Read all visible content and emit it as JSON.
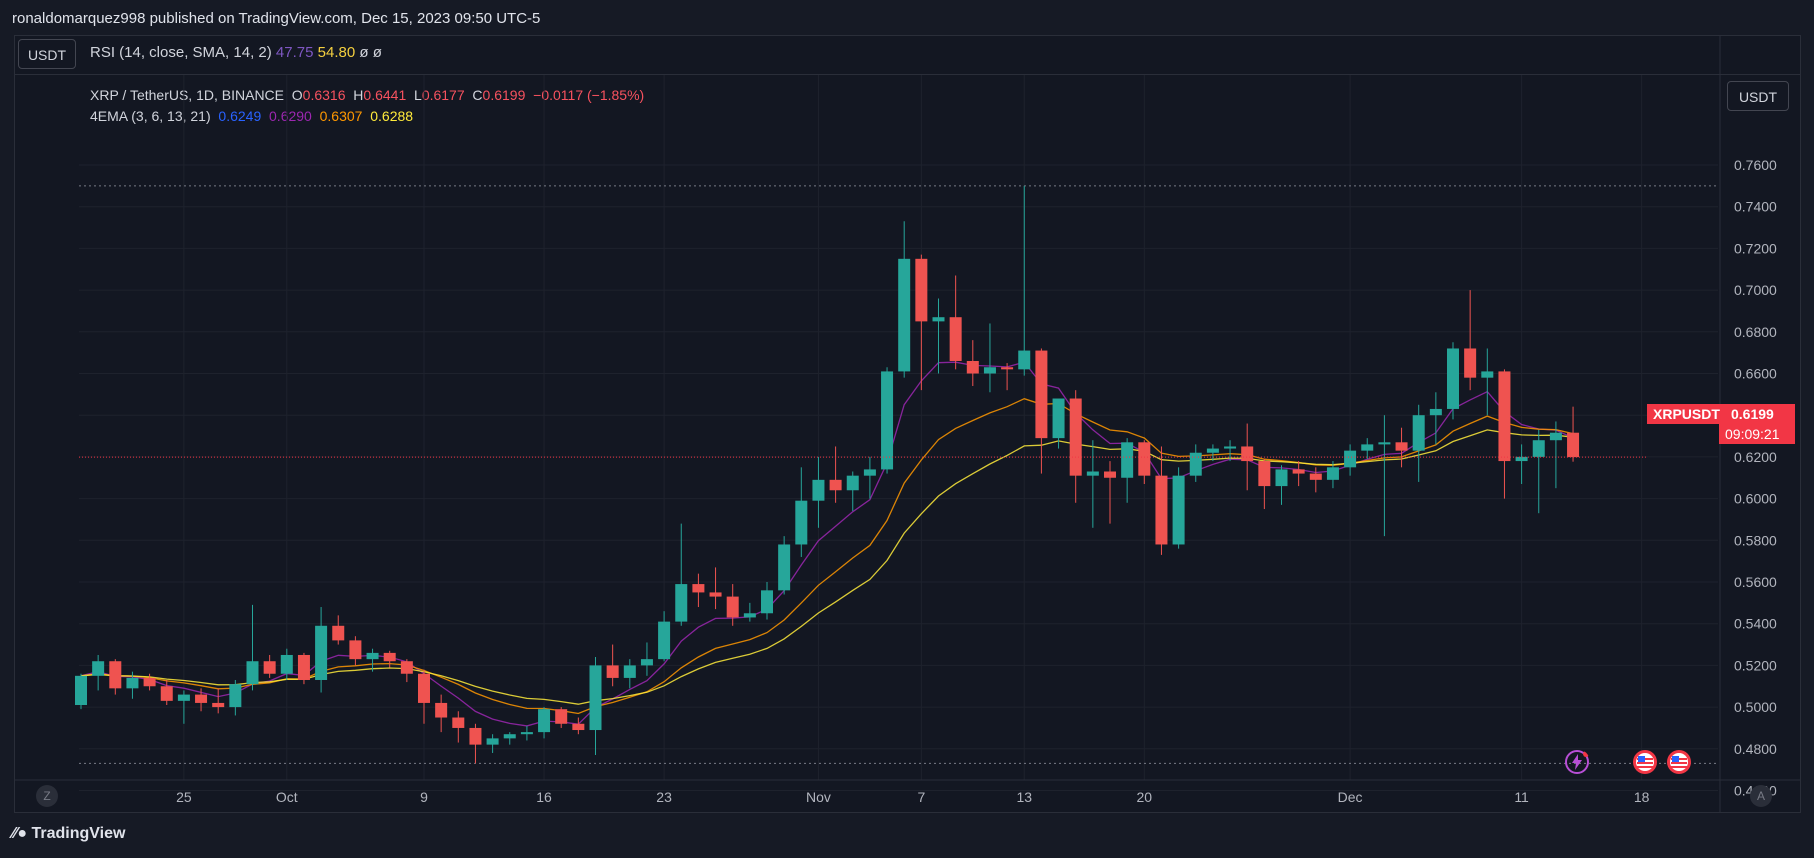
{
  "header": {
    "published_text": "ronaldomarquez998 published on TradingView.com, Dec 15, 2023 09:50 UTC-5"
  },
  "toolbar": {
    "currency_left": "USDT",
    "currency_right": "USDT",
    "rsi_label": "RSI (14, close, SMA, 14, 2)",
    "rsi_value": "47.75",
    "rsi_ma_value": "54.80",
    "rsi_extra1": "ø",
    "rsi_extra2": "ø"
  },
  "legend": {
    "symbol": "XRP / TetherUS, 1D, BINANCE",
    "o_label": "O",
    "o": "0.6316",
    "h_label": "H",
    "h": "0.6441",
    "l_label": "L",
    "l": "0.6177",
    "c_label": "C",
    "c": "0.6199",
    "change": "−0.0117 (−1.85%)",
    "ema_label": "4EMA (3, 6, 13, 21)",
    "ema1": "0.6249",
    "ema2": "0.6290",
    "ema3": "0.6307",
    "ema4": "0.6288"
  },
  "price_tag": {
    "symbol": "XRPUSDT",
    "price": "0.6199",
    "countdown": "09:09:21"
  },
  "footer": {
    "logo": "TradingView"
  },
  "axis_buttons": {
    "left": "Z",
    "right": "A"
  },
  "colors": {
    "up": "#26a69a",
    "down": "#ef5350",
    "bg": "#131722",
    "grid": "#1e222d",
    "ema1": "#2962ff",
    "ema2": "#9c27b0",
    "ema3": "#ff9800",
    "ema4": "#ffeb3b"
  },
  "icons": [
    "lightning-icon",
    "us-flag-icon",
    "us-flag-icon"
  ],
  "chart_data": {
    "type": "candlestick",
    "title": "XRP / TetherUS, 1D, BINANCE",
    "ylim": [
      0.45,
      0.77
    ],
    "y_ticks": [
      "0.7600",
      "0.7400",
      "0.7200",
      "0.7000",
      "0.6800",
      "0.6600",
      "0.6400",
      "0.6200",
      "0.6000",
      "0.5800",
      "0.5600",
      "0.5400",
      "0.5200",
      "0.5000",
      "0.4800",
      "0.4600"
    ],
    "x_ticks": [
      {
        "label": "25",
        "day": 6
      },
      {
        "label": "Oct",
        "day": 12
      },
      {
        "label": "9",
        "day": 20
      },
      {
        "label": "16",
        "day": 27
      },
      {
        "label": "23",
        "day": 34
      },
      {
        "label": "Nov",
        "day": 43
      },
      {
        "label": "7",
        "day": 49
      },
      {
        "label": "13",
        "day": 55
      },
      {
        "label": "20",
        "day": 62
      },
      {
        "label": "Dec",
        "day": 74
      },
      {
        "label": "11",
        "day": 84
      },
      {
        "label": "18",
        "day": 91
      }
    ],
    "candles": [
      {
        "o": 0.501,
        "h": 0.516,
        "l": 0.499,
        "c": 0.515
      },
      {
        "o": 0.515,
        "h": 0.525,
        "l": 0.508,
        "c": 0.522
      },
      {
        "o": 0.522,
        "h": 0.523,
        "l": 0.506,
        "c": 0.509
      },
      {
        "o": 0.509,
        "h": 0.517,
        "l": 0.504,
        "c": 0.514
      },
      {
        "o": 0.514,
        "h": 0.516,
        "l": 0.508,
        "c": 0.51
      },
      {
        "o": 0.51,
        "h": 0.513,
        "l": 0.501,
        "c": 0.503
      },
      {
        "o": 0.503,
        "h": 0.508,
        "l": 0.492,
        "c": 0.506
      },
      {
        "o": 0.506,
        "h": 0.509,
        "l": 0.498,
        "c": 0.502
      },
      {
        "o": 0.502,
        "h": 0.509,
        "l": 0.497,
        "c": 0.5
      },
      {
        "o": 0.5,
        "h": 0.513,
        "l": 0.496,
        "c": 0.511
      },
      {
        "o": 0.511,
        "h": 0.549,
        "l": 0.508,
        "c": 0.522
      },
      {
        "o": 0.522,
        "h": 0.525,
        "l": 0.514,
        "c": 0.516
      },
      {
        "o": 0.516,
        "h": 0.528,
        "l": 0.513,
        "c": 0.525
      },
      {
        "o": 0.525,
        "h": 0.526,
        "l": 0.511,
        "c": 0.513
      },
      {
        "o": 0.513,
        "h": 0.548,
        "l": 0.507,
        "c": 0.539
      },
      {
        "o": 0.539,
        "h": 0.544,
        "l": 0.53,
        "c": 0.532
      },
      {
        "o": 0.532,
        "h": 0.534,
        "l": 0.52,
        "c": 0.523
      },
      {
        "o": 0.523,
        "h": 0.528,
        "l": 0.517,
        "c": 0.526
      },
      {
        "o": 0.526,
        "h": 0.527,
        "l": 0.519,
        "c": 0.522
      },
      {
        "o": 0.522,
        "h": 0.523,
        "l": 0.512,
        "c": 0.516
      },
      {
        "o": 0.516,
        "h": 0.518,
        "l": 0.492,
        "c": 0.502
      },
      {
        "o": 0.502,
        "h": 0.506,
        "l": 0.488,
        "c": 0.495
      },
      {
        "o": 0.495,
        "h": 0.498,
        "l": 0.483,
        "c": 0.49
      },
      {
        "o": 0.49,
        "h": 0.492,
        "l": 0.473,
        "c": 0.482
      },
      {
        "o": 0.482,
        "h": 0.487,
        "l": 0.478,
        "c": 0.485
      },
      {
        "o": 0.485,
        "h": 0.488,
        "l": 0.482,
        "c": 0.487
      },
      {
        "o": 0.487,
        "h": 0.491,
        "l": 0.484,
        "c": 0.488
      },
      {
        "o": 0.488,
        "h": 0.5,
        "l": 0.485,
        "c": 0.499
      },
      {
        "o": 0.499,
        "h": 0.5,
        "l": 0.49,
        "c": 0.492
      },
      {
        "o": 0.492,
        "h": 0.495,
        "l": 0.487,
        "c": 0.489
      },
      {
        "o": 0.489,
        "h": 0.524,
        "l": 0.477,
        "c": 0.52
      },
      {
        "o": 0.52,
        "h": 0.53,
        "l": 0.51,
        "c": 0.514
      },
      {
        "o": 0.514,
        "h": 0.523,
        "l": 0.509,
        "c": 0.52
      },
      {
        "o": 0.52,
        "h": 0.531,
        "l": 0.515,
        "c": 0.523
      },
      {
        "o": 0.523,
        "h": 0.546,
        "l": 0.522,
        "c": 0.541
      },
      {
        "o": 0.541,
        "h": 0.588,
        "l": 0.539,
        "c": 0.559
      },
      {
        "o": 0.559,
        "h": 0.564,
        "l": 0.548,
        "c": 0.555
      },
      {
        "o": 0.555,
        "h": 0.567,
        "l": 0.547,
        "c": 0.553
      },
      {
        "o": 0.553,
        "h": 0.559,
        "l": 0.539,
        "c": 0.543
      },
      {
        "o": 0.543,
        "h": 0.55,
        "l": 0.541,
        "c": 0.545
      },
      {
        "o": 0.545,
        "h": 0.56,
        "l": 0.542,
        "c": 0.556
      },
      {
        "o": 0.556,
        "h": 0.582,
        "l": 0.554,
        "c": 0.578
      },
      {
        "o": 0.578,
        "h": 0.615,
        "l": 0.572,
        "c": 0.599
      },
      {
        "o": 0.599,
        "h": 0.62,
        "l": 0.586,
        "c": 0.609
      },
      {
        "o": 0.609,
        "h": 0.625,
        "l": 0.598,
        "c": 0.604
      },
      {
        "o": 0.604,
        "h": 0.613,
        "l": 0.594,
        "c": 0.611
      },
      {
        "o": 0.611,
        "h": 0.62,
        "l": 0.6,
        "c": 0.614
      },
      {
        "o": 0.614,
        "h": 0.663,
        "l": 0.612,
        "c": 0.661
      },
      {
        "o": 0.661,
        "h": 0.733,
        "l": 0.658,
        "c": 0.715
      },
      {
        "o": 0.715,
        "h": 0.717,
        "l": 0.652,
        "c": 0.685
      },
      {
        "o": 0.685,
        "h": 0.696,
        "l": 0.66,
        "c": 0.687
      },
      {
        "o": 0.687,
        "h": 0.707,
        "l": 0.662,
        "c": 0.666
      },
      {
        "o": 0.666,
        "h": 0.676,
        "l": 0.654,
        "c": 0.66
      },
      {
        "o": 0.66,
        "h": 0.684,
        "l": 0.651,
        "c": 0.663
      },
      {
        "o": 0.663,
        "h": 0.665,
        "l": 0.652,
        "c": 0.662
      },
      {
        "o": 0.662,
        "h": 0.75,
        "l": 0.659,
        "c": 0.671
      },
      {
        "o": 0.671,
        "h": 0.672,
        "l": 0.612,
        "c": 0.629
      },
      {
        "o": 0.629,
        "h": 0.647,
        "l": 0.624,
        "c": 0.648
      },
      {
        "o": 0.648,
        "h": 0.652,
        "l": 0.598,
        "c": 0.611
      },
      {
        "o": 0.611,
        "h": 0.628,
        "l": 0.586,
        "c": 0.613
      },
      {
        "o": 0.613,
        "h": 0.618,
        "l": 0.588,
        "c": 0.61
      },
      {
        "o": 0.61,
        "h": 0.629,
        "l": 0.598,
        "c": 0.627
      },
      {
        "o": 0.627,
        "h": 0.628,
        "l": 0.607,
        "c": 0.611
      },
      {
        "o": 0.611,
        "h": 0.625,
        "l": 0.573,
        "c": 0.578
      },
      {
        "o": 0.578,
        "h": 0.615,
        "l": 0.576,
        "c": 0.611
      },
      {
        "o": 0.611,
        "h": 0.626,
        "l": 0.608,
        "c": 0.622
      },
      {
        "o": 0.622,
        "h": 0.626,
        "l": 0.618,
        "c": 0.624
      },
      {
        "o": 0.624,
        "h": 0.628,
        "l": 0.618,
        "c": 0.625
      },
      {
        "o": 0.625,
        "h": 0.636,
        "l": 0.604,
        "c": 0.618
      },
      {
        "o": 0.618,
        "h": 0.619,
        "l": 0.595,
        "c": 0.606
      },
      {
        "o": 0.606,
        "h": 0.616,
        "l": 0.597,
        "c": 0.614
      },
      {
        "o": 0.614,
        "h": 0.618,
        "l": 0.606,
        "c": 0.612
      },
      {
        "o": 0.612,
        "h": 0.615,
        "l": 0.603,
        "c": 0.609
      },
      {
        "o": 0.609,
        "h": 0.618,
        "l": 0.605,
        "c": 0.615
      },
      {
        "o": 0.615,
        "h": 0.626,
        "l": 0.611,
        "c": 0.623
      },
      {
        "o": 0.623,
        "h": 0.629,
        "l": 0.619,
        "c": 0.626
      },
      {
        "o": 0.626,
        "h": 0.64,
        "l": 0.582,
        "c": 0.627
      },
      {
        "o": 0.627,
        "h": 0.634,
        "l": 0.615,
        "c": 0.623
      },
      {
        "o": 0.623,
        "h": 0.645,
        "l": 0.608,
        "c": 0.64
      },
      {
        "o": 0.64,
        "h": 0.651,
        "l": 0.626,
        "c": 0.643
      },
      {
        "o": 0.643,
        "h": 0.675,
        "l": 0.638,
        "c": 0.672
      },
      {
        "o": 0.672,
        "h": 0.7,
        "l": 0.652,
        "c": 0.658
      },
      {
        "o": 0.658,
        "h": 0.672,
        "l": 0.64,
        "c": 0.661
      },
      {
        "o": 0.661,
        "h": 0.662,
        "l": 0.6,
        "c": 0.618
      },
      {
        "o": 0.618,
        "h": 0.626,
        "l": 0.607,
        "c": 0.62
      },
      {
        "o": 0.62,
        "h": 0.633,
        "l": 0.593,
        "c": 0.628
      },
      {
        "o": 0.628,
        "h": 0.637,
        "l": 0.605,
        "c": 0.6316
      },
      {
        "o": 0.6316,
        "h": 0.6441,
        "l": 0.6177,
        "c": 0.6199
      }
    ],
    "current_price": 0.6199,
    "upper_dotted": 0.75,
    "lower_dotted": 0.473
  }
}
